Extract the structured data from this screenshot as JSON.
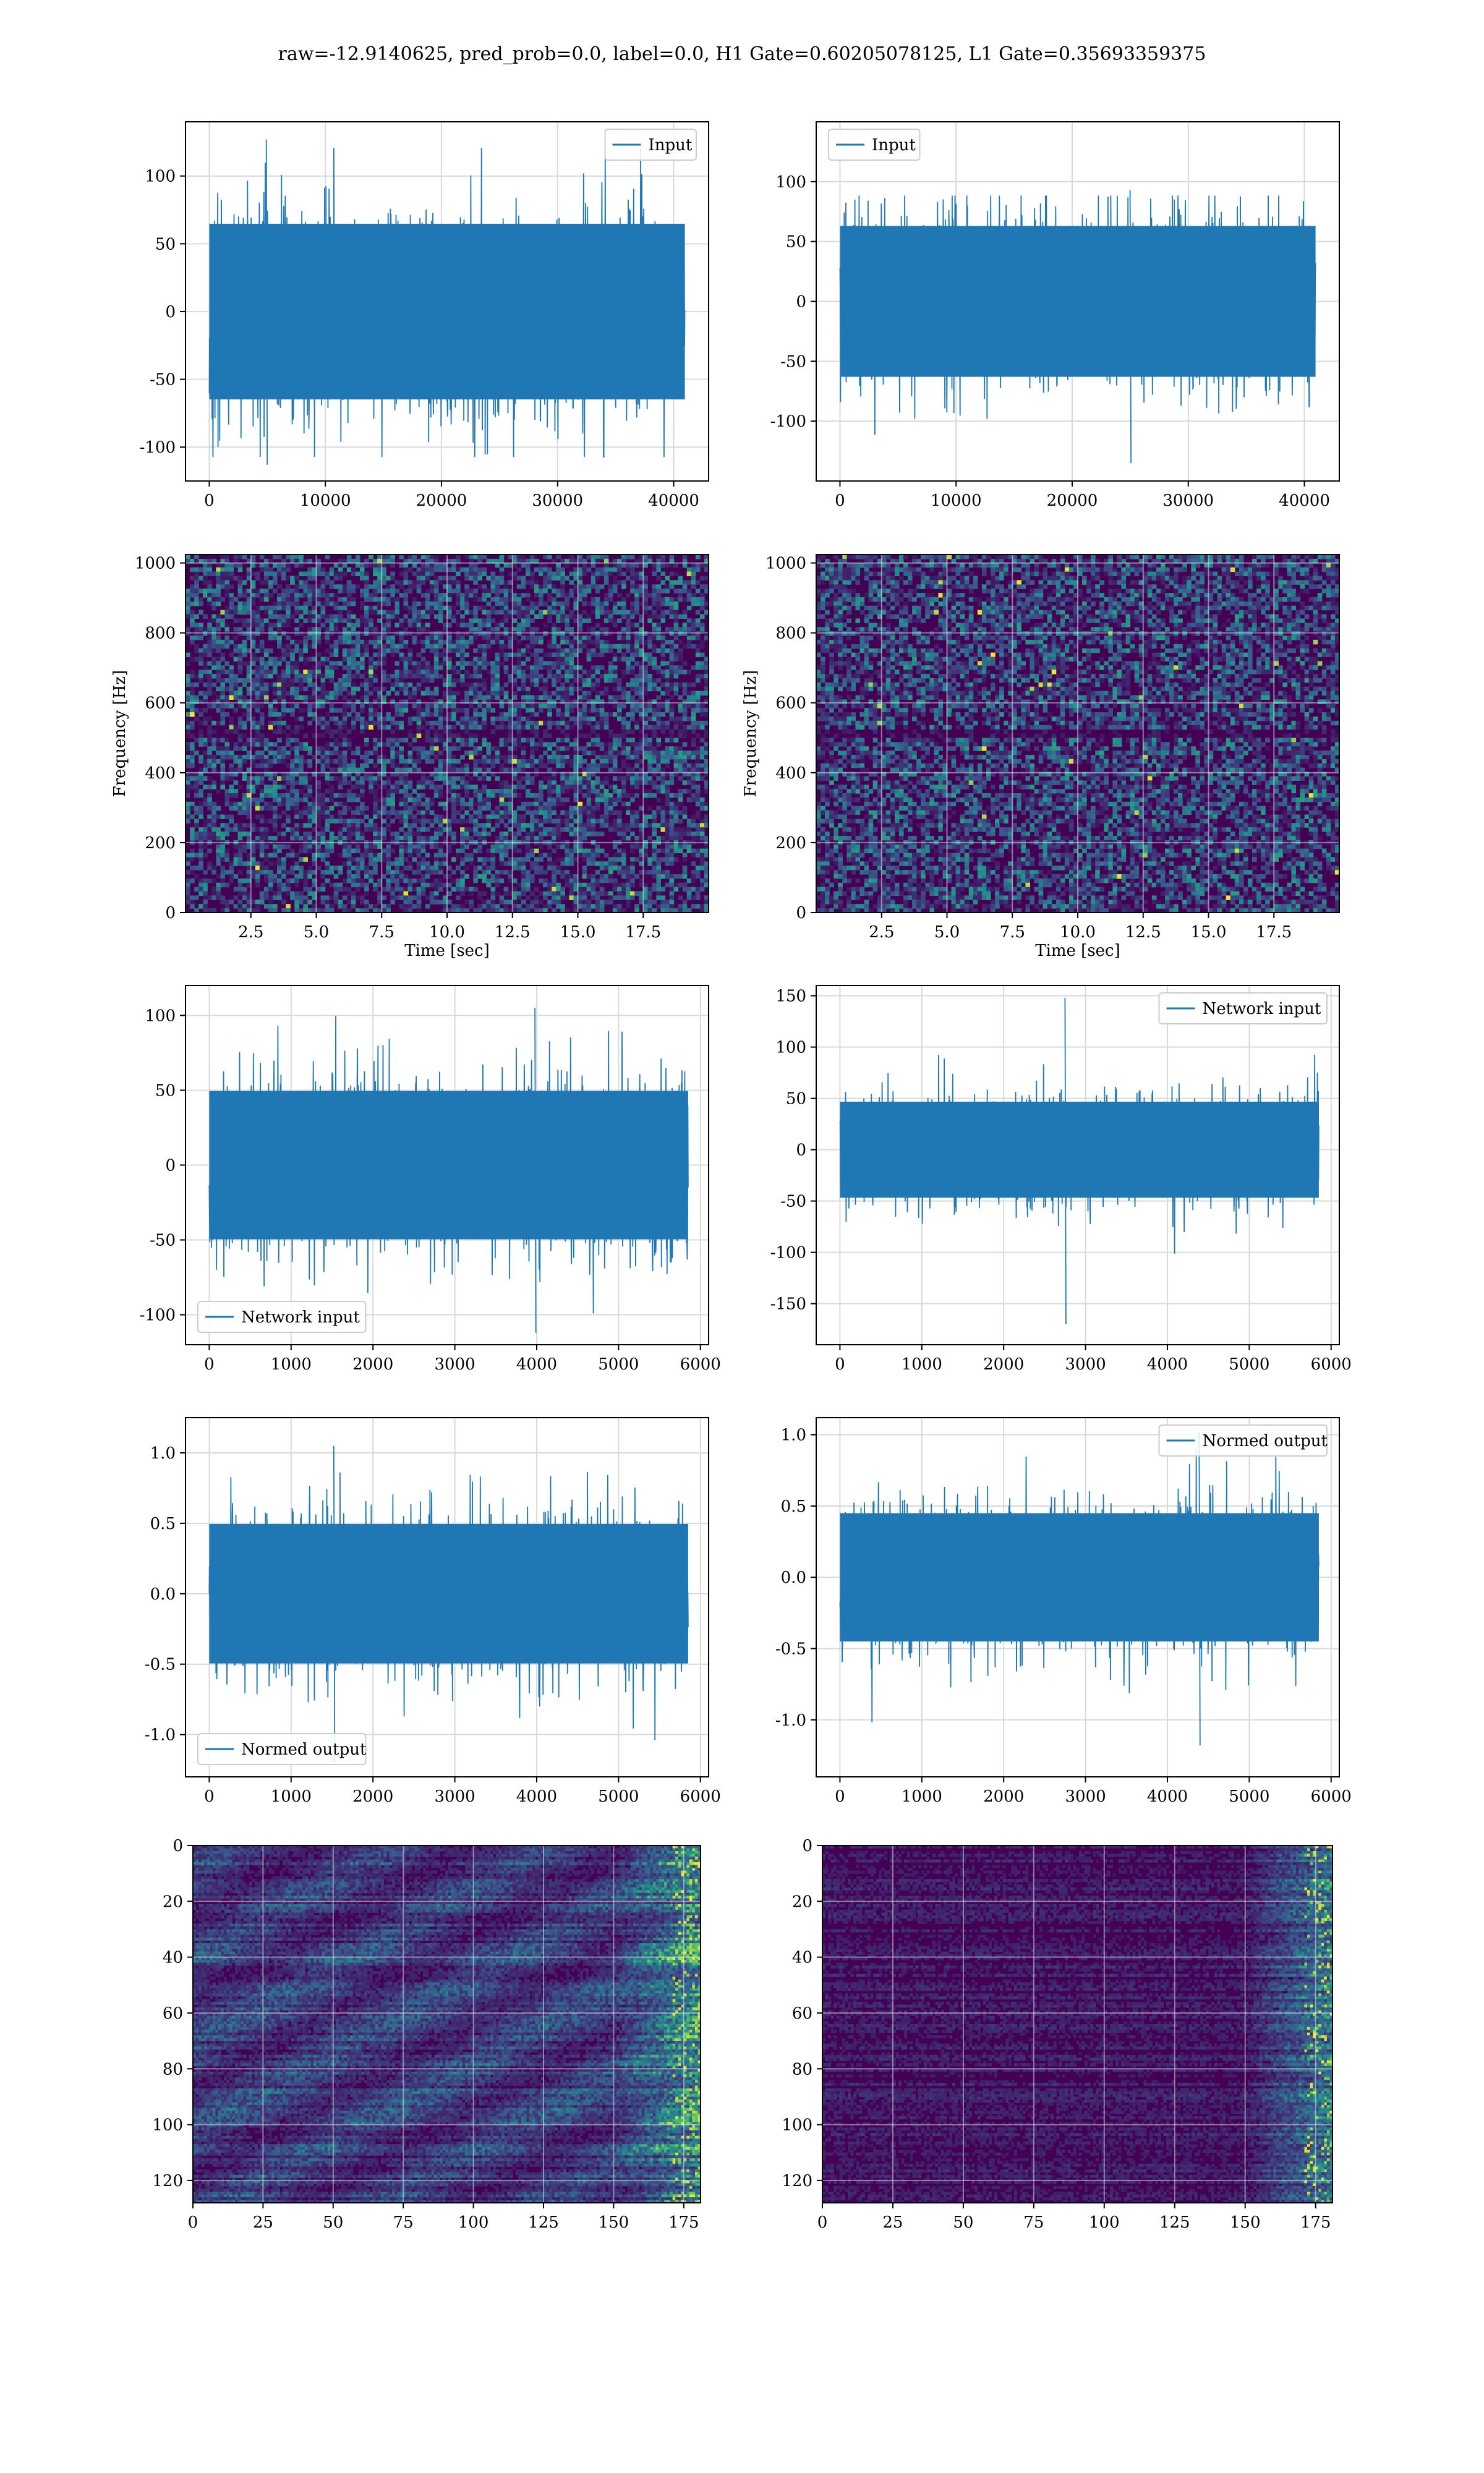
{
  "figure_title": "raw=-12.9140625, pred_prob=0.0, label=0.0, H1 Gate=0.60205078125, L1 Gate=0.35693359375",
  "colors": {
    "line": "#1f77b4",
    "grid": "#d9d9d9",
    "viridis_low": "#440154",
    "viridis_mid": "#21918c",
    "viridis_high": "#fde725"
  },
  "chart_data": [
    {
      "id": "h1-input",
      "type": "line",
      "x": [
        0,
        40960
      ],
      "xlim": [
        -2048,
        43008
      ],
      "ylim": [
        -125,
        140
      ],
      "xticks": [
        0,
        10000,
        20000,
        30000,
        40000
      ],
      "yticks": [
        -100,
        -50,
        0,
        50,
        100
      ],
      "envelope": {
        "p99": 72,
        "max": 127,
        "min": -113
      },
      "series": [
        {
          "name": "Input"
        }
      ],
      "legend_pos": "upper-right",
      "xlabel": "",
      "ylabel": "",
      "grid": true
    },
    {
      "id": "l1-input",
      "type": "line",
      "x": [
        0,
        40960
      ],
      "xlim": [
        -2048,
        43008
      ],
      "ylim": [
        -150,
        150
      ],
      "xticks": [
        0,
        10000,
        20000,
        30000,
        40000
      ],
      "yticks": [
        -100,
        -50,
        0,
        50,
        100
      ],
      "envelope": {
        "p99": 70,
        "max": 93,
        "min": -135
      },
      "series": [
        {
          "name": "Input"
        }
      ],
      "legend_pos": "upper-left",
      "xlabel": "",
      "ylabel": "",
      "grid": true
    },
    {
      "id": "h1-spectrogram",
      "type": "heatmap",
      "xlim": [
        0,
        20
      ],
      "ylim": [
        0,
        1024
      ],
      "xticks": [
        2.5,
        5.0,
        7.5,
        10.0,
        12.5,
        15.0,
        17.5
      ],
      "yticks": [
        0,
        200,
        400,
        600,
        800,
        1000
      ],
      "xlabel": "Time [sec]",
      "ylabel": "Frequency [Hz]",
      "grid": true
    },
    {
      "id": "l1-spectrogram",
      "type": "heatmap",
      "xlim": [
        0,
        20
      ],
      "ylim": [
        0,
        1024
      ],
      "xticks": [
        2.5,
        5.0,
        7.5,
        10.0,
        12.5,
        15.0,
        17.5
      ],
      "yticks": [
        0,
        200,
        400,
        600,
        800,
        1000
      ],
      "xlabel": "Time [sec]",
      "ylabel": "Frequency [Hz]",
      "grid": true
    },
    {
      "id": "h1-network-input",
      "type": "line",
      "x": [
        0,
        5850
      ],
      "xlim": [
        -290,
        6100
      ],
      "ylim": [
        -120,
        120
      ],
      "xticks": [
        0,
        1000,
        2000,
        3000,
        4000,
        5000,
        6000
      ],
      "yticks": [
        -100,
        -50,
        0,
        50,
        100
      ],
      "envelope": {
        "p99": 55,
        "max": 105,
        "min": -112
      },
      "series": [
        {
          "name": "Network input"
        }
      ],
      "legend_pos": "lower-left",
      "xlabel": "",
      "ylabel": "",
      "grid": true
    },
    {
      "id": "l1-network-input",
      "type": "line",
      "x": [
        0,
        5850
      ],
      "xlim": [
        -290,
        6100
      ],
      "ylim": [
        -190,
        160
      ],
      "xticks": [
        0,
        1000,
        2000,
        3000,
        4000,
        5000,
        6000
      ],
      "yticks": [
        -150,
        -100,
        -50,
        0,
        50,
        100,
        150
      ],
      "envelope": {
        "p99": 52,
        "max": 148,
        "min": -170
      },
      "series": [
        {
          "name": "Network input"
        }
      ],
      "legend_pos": "upper-right",
      "xlabel": "",
      "ylabel": "",
      "grid": true
    },
    {
      "id": "h1-normed-output",
      "type": "line",
      "x": [
        0,
        5850
      ],
      "xlim": [
        -290,
        6100
      ],
      "ylim": [
        -1.3,
        1.25
      ],
      "xticks": [
        0,
        1000,
        2000,
        3000,
        4000,
        5000,
        6000
      ],
      "yticks": [
        -1.0,
        -0.5,
        0.0,
        0.5,
        1.0
      ],
      "envelope": {
        "p99": 0.55,
        "max": 1.05,
        "min": -1.2
      },
      "series": [
        {
          "name": "Normed output"
        }
      ],
      "legend_pos": "lower-left",
      "xlabel": "",
      "ylabel": "",
      "grid": true
    },
    {
      "id": "l1-normed-output",
      "type": "line",
      "x": [
        0,
        5850
      ],
      "xlim": [
        -290,
        6100
      ],
      "ylim": [
        -1.4,
        1.12
      ],
      "xticks": [
        0,
        1000,
        2000,
        3000,
        4000,
        5000,
        6000
      ],
      "yticks": [
        -1.0,
        -0.5,
        0.0,
        0.5,
        1.0
      ],
      "envelope": {
        "p99": 0.5,
        "max": 1.02,
        "min": -1.18
      },
      "series": [
        {
          "name": "Normed output"
        }
      ],
      "legend_pos": "upper-right",
      "xlabel": "",
      "ylabel": "",
      "grid": true
    },
    {
      "id": "h1-features",
      "type": "heatmap",
      "xlim": [
        0,
        181
      ],
      "ylim": [
        128,
        0
      ],
      "xticks": [
        0,
        25,
        50,
        75,
        100,
        125,
        150,
        175
      ],
      "yticks": [
        0,
        20,
        40,
        60,
        80,
        100,
        120
      ],
      "xlabel": "",
      "ylabel": "",
      "grid": true
    },
    {
      "id": "l1-features",
      "type": "heatmap",
      "xlim": [
        0,
        181
      ],
      "ylim": [
        128,
        0
      ],
      "xticks": [
        0,
        25,
        50,
        75,
        100,
        125,
        150,
        175
      ],
      "yticks": [
        0,
        20,
        40,
        60,
        80,
        100,
        120
      ],
      "xlabel": "",
      "ylabel": "",
      "grid": true
    }
  ]
}
